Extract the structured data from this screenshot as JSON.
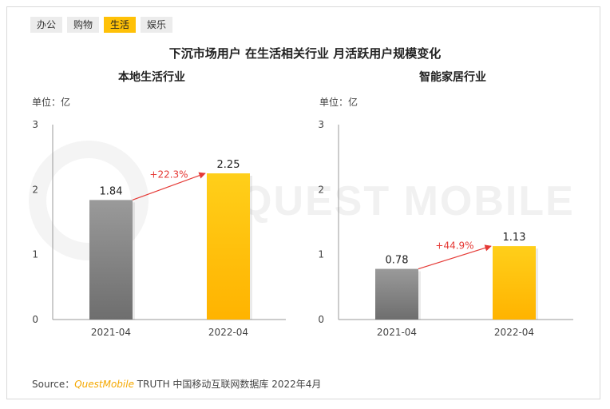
{
  "tabs": [
    {
      "label": "办公",
      "active": false
    },
    {
      "label": "购物",
      "active": false
    },
    {
      "label": "生活",
      "active": true
    },
    {
      "label": "娱乐",
      "active": false
    }
  ],
  "title": "下沉市场用户 在生活相关行业 月活跃用户规模变化",
  "watermark": "QUEST MOBILE",
  "source": {
    "prefix": "Source：",
    "brand": "QuestMobile",
    "suffix": " TRUTH 中国移动互联网数据库 2022年4月"
  },
  "colors": {
    "bar_2021": "#8a8a8a",
    "bar_2022": "#ffc107",
    "growth_arrow": "#e53935"
  },
  "chart_data": [
    {
      "type": "bar",
      "title": "本地生活行业",
      "unit": "单位：亿",
      "categories": [
        "2021-04",
        "2022-04"
      ],
      "values": [
        1.84,
        2.25
      ],
      "value_labels": [
        "1.84",
        "2.25"
      ],
      "growth_label": "+22.3%",
      "ylim": [
        0,
        3
      ],
      "yticks": [
        "0",
        "1",
        "2",
        "3"
      ]
    },
    {
      "type": "bar",
      "title": "智能家居行业",
      "unit": "单位：亿",
      "categories": [
        "2021-04",
        "2022-04"
      ],
      "values": [
        0.78,
        1.13
      ],
      "value_labels": [
        "0.78",
        "1.13"
      ],
      "growth_label": "+44.9%",
      "ylim": [
        0,
        3
      ],
      "yticks": [
        "0",
        "1",
        "2",
        "3"
      ]
    }
  ]
}
